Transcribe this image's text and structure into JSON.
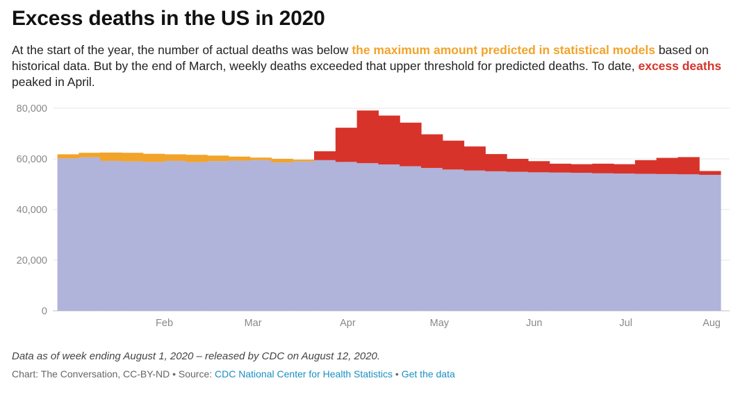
{
  "header": {
    "title": "Excess deaths in the US in 2020",
    "subtitle_part1": "At the start of the year, the number of actual deaths was below ",
    "subtitle_highlight1": "the maximum amount predicted in statistical models",
    "subtitle_part2": " based on historical data. But by the end of March, weekly deaths exceeded that upper threshold for predicted deaths. To date, ",
    "subtitle_highlight2": "excess deaths",
    "subtitle_part3": " peaked in April."
  },
  "footer": {
    "note": "Data as of week ending August 1, 2020 – released by CDC on August 12, 2020.",
    "credit_prefix": "Chart: The Conversation, CC-BY-ND • Source: ",
    "source_link": "CDC National Center for Health Statistics",
    "separator": " • ",
    "data_link": "Get the data"
  },
  "colors": {
    "actual": "#b0b3da",
    "below_threshold": "#f2a32a",
    "excess": "#d7332a",
    "gridline": "#e6e6e6",
    "axis_text": "#888888"
  },
  "chart_data": {
    "type": "area",
    "step": true,
    "title": "Excess deaths in the US in 2020",
    "xlabel": "",
    "ylabel": "",
    "ylim": [
      0,
      80000
    ],
    "yticks": [
      0,
      20000,
      40000,
      60000,
      80000
    ],
    "ytick_labels": [
      "0",
      "20,000",
      "40,000",
      "60,000",
      "80,000"
    ],
    "xlim": [
      "2019-12-29",
      "2020-08-01"
    ],
    "xticks": [
      "2020-02-01",
      "2020-03-01",
      "2020-04-01",
      "2020-05-01",
      "2020-06-01",
      "2020-07-01",
      "2020-08-01"
    ],
    "xtick_labels": [
      "Feb",
      "Mar",
      "Apr",
      "May",
      "Jun",
      "Jul",
      "Aug"
    ],
    "grid": "horizontal",
    "week_ending": [
      "2020-01-04",
      "2020-01-11",
      "2020-01-18",
      "2020-01-25",
      "2020-02-01",
      "2020-02-08",
      "2020-02-15",
      "2020-02-22",
      "2020-02-29",
      "2020-03-07",
      "2020-03-14",
      "2020-03-21",
      "2020-03-28",
      "2020-04-04",
      "2020-04-11",
      "2020-04-18",
      "2020-04-25",
      "2020-05-02",
      "2020-05-09",
      "2020-05-16",
      "2020-05-23",
      "2020-05-30",
      "2020-06-06",
      "2020-06-13",
      "2020-06-20",
      "2020-06-27",
      "2020-07-04",
      "2020-07-11",
      "2020-07-18",
      "2020-07-25",
      "2020-08-01"
    ],
    "series": [
      {
        "name": "actual deaths",
        "values": [
          60200,
          60600,
          59200,
          59000,
          58800,
          59200,
          58700,
          59100,
          59300,
          59500,
          58600,
          59000,
          59500,
          58800,
          58300,
          57800,
          57100,
          56400,
          55800,
          55400,
          55100,
          54900,
          54700,
          54600,
          54500,
          54300,
          54200,
          54100,
          54000,
          53900,
          53700
        ]
      },
      {
        "name": "maximum amount predicted in statistical models",
        "values": [
          61800,
          62400,
          62500,
          62400,
          62000,
          61800,
          61600,
          61300,
          60900,
          60500,
          60000,
          59700,
          59400,
          59200,
          58900,
          58600,
          58200,
          57800,
          57400,
          57000,
          56600,
          56300,
          56000,
          55700,
          55400,
          55100,
          54900,
          54700,
          54500,
          54300,
          54200
        ]
      },
      {
        "name": "excess deaths",
        "values": [
          0,
          0,
          0,
          0,
          0,
          0,
          0,
          0,
          0,
          0,
          0,
          0,
          3500,
          13500,
          20800,
          19300,
          17200,
          13300,
          11400,
          9500,
          6800,
          5100,
          4400,
          3500,
          3400,
          3800,
          3700,
          5400,
          6400,
          6800,
          1500
        ]
      }
    ]
  }
}
